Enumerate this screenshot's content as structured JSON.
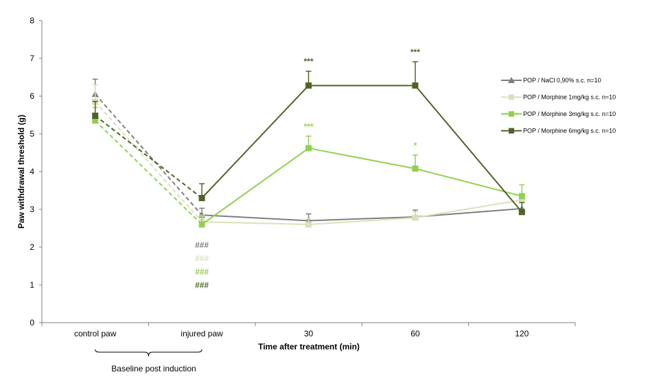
{
  "chart_data": {
    "type": "line",
    "title": "",
    "ylabel": "Paw withdrawal threshold (g)",
    "xlabel": "Time after treatment (min)",
    "ylim": [
      0,
      8
    ],
    "yticks": [
      0,
      1,
      2,
      3,
      4,
      5,
      6,
      7,
      8
    ],
    "categories": [
      "control paw",
      "injured paw",
      "30",
      "60",
      "120"
    ],
    "bracket_label": "Baseline post induction",
    "grid": false,
    "legend_position": "right",
    "series": [
      {
        "name": "POP / NaCl 0,90% s.c. n=10",
        "color": "#7f7f7f",
        "marker": "triangle",
        "values": [
          6.05,
          2.85,
          2.7,
          2.8,
          3.02
        ],
        "errors": [
          0.4,
          0.18,
          0.18,
          0.18,
          0.18
        ],
        "stars": [
          "",
          "",
          "",
          "",
          ""
        ],
        "hash": "###"
      },
      {
        "name": "POP / Morphine 1mg/kg s.c. n=10",
        "color": "#d7e2b9",
        "marker": "square",
        "values": [
          5.85,
          2.67,
          2.6,
          2.78,
          3.25
        ],
        "errors": [
          0.45,
          0.15,
          0.15,
          0.15,
          0.12
        ],
        "stars": [
          "",
          "",
          "",
          "",
          ""
        ],
        "hash": "###"
      },
      {
        "name": "POP / Morphine 3mg/kg s.c. n=10",
        "color": "#92d050",
        "marker": "square",
        "values": [
          5.35,
          2.6,
          4.62,
          4.08,
          3.35
        ],
        "errors": [
          0.35,
          0.25,
          0.32,
          0.36,
          0.3
        ],
        "stars": [
          "",
          "",
          "***",
          "*",
          ""
        ],
        "hash": "###"
      },
      {
        "name": "POP / Morphine 6mg/kg s.c. n=10",
        "color": "#4f6228",
        "marker": "square",
        "values": [
          5.48,
          3.3,
          6.28,
          6.28,
          2.93
        ],
        "errors": [
          0.38,
          0.38,
          0.38,
          0.63,
          0.25
        ],
        "stars": [
          "",
          "",
          "***",
          "***",
          ""
        ],
        "hash": "###"
      }
    ]
  }
}
